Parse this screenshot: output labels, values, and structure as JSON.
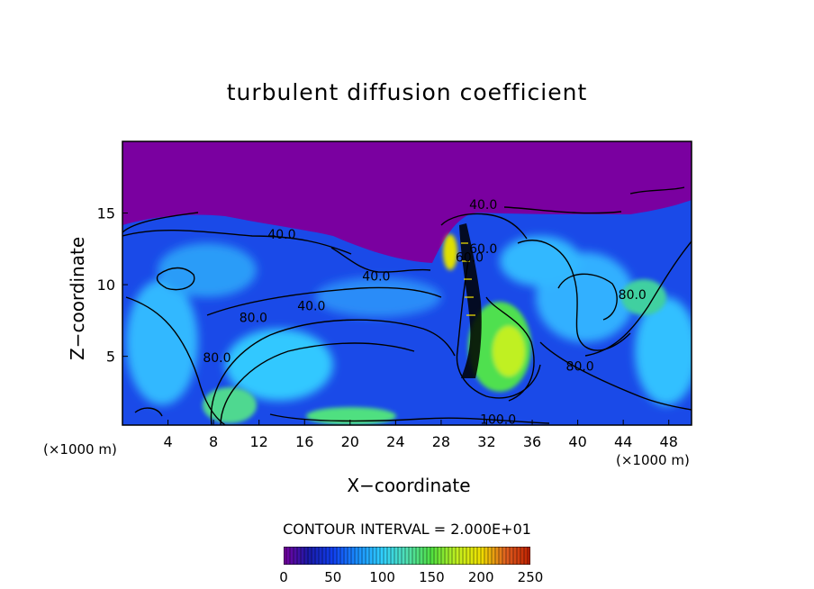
{
  "chart_data": {
    "type": "heatmap",
    "title": "turbulent diffusion coefficient",
    "xlabel": "X−coordinate",
    "ylabel": "Z−coordinate",
    "x_unit": "(×1000 m)",
    "x_ticks": [
      4,
      8,
      12,
      16,
      20,
      24,
      28,
      32,
      36,
      40,
      44,
      48
    ],
    "y_ticks": [
      5,
      10,
      15
    ],
    "xlim": [
      0,
      50
    ],
    "ylim": [
      0.2,
      20
    ],
    "contour_interval_label": "CONTOUR INTERVAL = 2.000E+01",
    "contour_interval": 20,
    "contour_labels": [
      {
        "text": "40.0",
        "x": 14,
        "y": 13.2
      },
      {
        "text": "40.0",
        "x": 22.3,
        "y": 10.3
      },
      {
        "text": "40.0",
        "x": 16.6,
        "y": 8.2
      },
      {
        "text": "40.0",
        "x": 31.7,
        "y": 15.3
      },
      {
        "text": "60.0",
        "x": 31.7,
        "y": 12.2
      },
      {
        "text": "60.0",
        "x": 30.5,
        "y": 11.6
      },
      {
        "text": "80.0",
        "x": 11.5,
        "y": 7.4
      },
      {
        "text": "80.0",
        "x": 8.3,
        "y": 4.6
      },
      {
        "text": "80.0",
        "x": 44.8,
        "y": 9.0
      },
      {
        "text": "80.0",
        "x": 40.2,
        "y": 4.0
      },
      {
        "text": "100.0",
        "x": 33.0,
        "y": 0.3
      }
    ],
    "colorbar": {
      "min": 0,
      "max": 250,
      "ticks": [
        0,
        50,
        100,
        150,
        200,
        250
      ],
      "colormap": [
        "#7a00a0",
        "#1a1aa8",
        "#1040f0",
        "#1a90ff",
        "#30d0ff",
        "#50e0b0",
        "#50e040",
        "#c0f020",
        "#f0e000",
        "#e06020",
        "#c02000"
      ]
    },
    "background_color": "#7a00a0"
  }
}
